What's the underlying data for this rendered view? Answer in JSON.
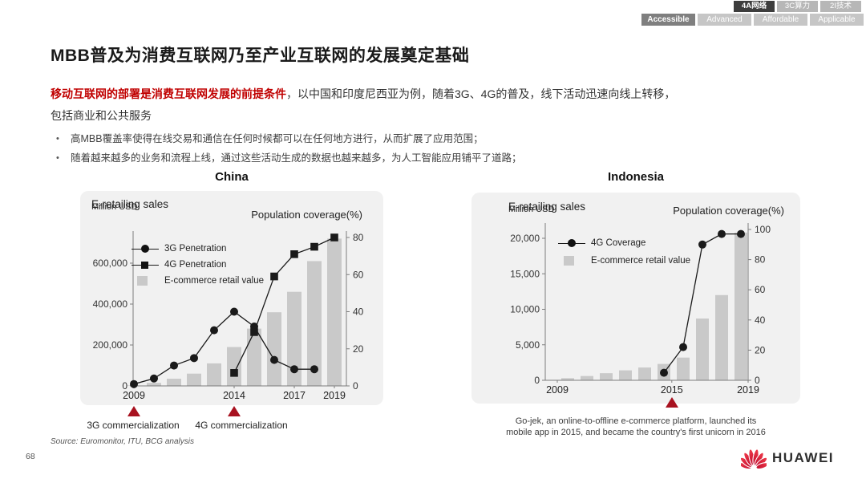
{
  "header": {
    "tabs_row1": [
      {
        "label": "4A网络",
        "active": true
      },
      {
        "label": "3C算力",
        "active": false
      },
      {
        "label": "2I技术",
        "active": false
      }
    ],
    "tabs_row2": [
      {
        "label": "Accessible",
        "active": true
      },
      {
        "label": "Advanced",
        "active": false
      },
      {
        "label": "Affordable",
        "active": false
      },
      {
        "label": "Applicable",
        "active": false
      }
    ],
    "title": "MBB普及为消费互联网乃至产业互联网的发展奠定基础"
  },
  "intro": {
    "highlight": "移动互联网的部署是消费互联网发展的前提条件",
    "rest": "，以中国和印度尼西亚为例，随着3G、4G的普及，线下活动迅速向线上转移，",
    "line2": "包括商业和公共服务"
  },
  "bullets": [
    "高MBB覆盖率使得在线交易和通信在任何时候都可以在任何地方进行，从而扩展了应用范围；",
    "随着越来越多的业务和流程上线，通过这些活动生成的数据也越来越多，为人工智能应用铺平了道路；"
  ],
  "chart_data": [
    {
      "type": "combo",
      "title": "China",
      "left_axis_title": "E-retailing sales",
      "left_axis_unit": "Million USD",
      "right_axis_title": "Population coverage(%)",
      "x": [
        2009,
        2010,
        2011,
        2012,
        2013,
        2014,
        2015,
        2016,
        2017,
        2018,
        2019
      ],
      "x_ticks": [
        {
          "year": 2009,
          "label": "2009"
        },
        {
          "year": 2014,
          "label": "2014"
        },
        {
          "year": 2017,
          "label": "2017"
        },
        {
          "year": 2019,
          "label": "2019"
        }
      ],
      "left_ticks": [
        {
          "value": 0,
          "label": "0"
        },
        {
          "value": 200000,
          "label": "200,000"
        },
        {
          "value": 400000,
          "label": "400,000"
        },
        {
          "value": 600000,
          "label": "600,000"
        }
      ],
      "right_ticks": [
        {
          "value": 0,
          "label": "0"
        },
        {
          "value": 20,
          "label": "20"
        },
        {
          "value": 40,
          "label": "40"
        },
        {
          "value": 60,
          "label": "60"
        },
        {
          "value": 80,
          "label": "80"
        }
      ],
      "left_axis_range": [
        0,
        740000
      ],
      "right_axis_range": [
        0,
        83
      ],
      "series": [
        {
          "name": "3G Penetration",
          "type": "line",
          "marker": "circle",
          "axis": "right",
          "color": "#1a1a1a",
          "values": [
            1,
            4,
            11,
            15,
            30,
            40,
            32,
            14,
            9,
            9,
            null
          ]
        },
        {
          "name": "4G Penetration",
          "type": "line",
          "marker": "square",
          "axis": "right",
          "color": "#1a1a1a",
          "values": [
            null,
            null,
            null,
            null,
            null,
            7,
            29,
            59,
            71,
            75,
            80
          ]
        },
        {
          "name": "E-commerce retail value",
          "type": "bar",
          "axis": "left",
          "color": "#c9c9c9",
          "values": [
            2000,
            15000,
            35000,
            60000,
            110000,
            190000,
            280000,
            360000,
            460000,
            610000,
            720000
          ]
        }
      ],
      "milestones": [
        {
          "year": 2009,
          "label": "3G commercialization"
        },
        {
          "year": 2014,
          "label": "4G commercialization"
        }
      ]
    },
    {
      "type": "combo",
      "title": "Indonesia",
      "left_axis_title": "E-retailing sales",
      "left_axis_unit": "Million USD",
      "right_axis_title": "Population coverage(%)",
      "x": [
        2009,
        2010,
        2011,
        2012,
        2013,
        2014,
        2015,
        2016,
        2017,
        2018,
        2019
      ],
      "x_ticks": [
        {
          "year": 2009,
          "label": "2009"
        },
        {
          "year": 2015,
          "label": "2015"
        },
        {
          "year": 2019,
          "label": "2019"
        }
      ],
      "left_ticks": [
        {
          "value": 0,
          "label": "0"
        },
        {
          "value": 5000,
          "label": "5,000"
        },
        {
          "value": 10000,
          "label": "10,000"
        },
        {
          "value": 15000,
          "label": "15,000"
        },
        {
          "value": 20000,
          "label": "20,000"
        }
      ],
      "right_ticks": [
        {
          "value": 0,
          "label": "0"
        },
        {
          "value": 20,
          "label": "20"
        },
        {
          "value": 40,
          "label": "40"
        },
        {
          "value": 60,
          "label": "60"
        },
        {
          "value": 80,
          "label": "80"
        },
        {
          "value": 100,
          "label": "100"
        }
      ],
      "left_axis_range": [
        0,
        22200
      ],
      "right_axis_range": [
        0,
        104
      ],
      "series": [
        {
          "name": "4G Coverage",
          "type": "line",
          "marker": "circle",
          "axis": "right",
          "color": "#1a1a1a",
          "values": [
            null,
            null,
            null,
            null,
            null,
            null,
            5,
            22,
            90,
            97,
            97
          ]
        },
        {
          "name": "E-commerce retail value",
          "type": "bar",
          "axis": "left",
          "color": "#c9c9c9",
          "values": [
            50,
            300,
            600,
            1000,
            1400,
            1800,
            2300,
            3200,
            8700,
            12000,
            20800
          ]
        }
      ],
      "milestones": [
        {
          "year": 2015,
          "label": ""
        }
      ],
      "caption_line1": "Go-jek, an online-to-offline e-commerce platform, launched its",
      "caption_line2": "mobile app in 2015, and became the country's first unicorn in 2016"
    }
  ],
  "footer": {
    "source": "Source: Euromonitor, ITU, BCG analysis",
    "page_number": "68",
    "logo_text": "HUAWEI"
  },
  "colors": {
    "accent_red": "#c00000",
    "milestone_red": "#a81220",
    "bar_gray": "#c9c9c9",
    "line_black": "#1a1a1a",
    "panel_bg": "#f1f1f1",
    "tab_active_dark": "#3d3d3d",
    "tab_inactive_light": "#b7b7b7",
    "tab_active_medium": "#7f7f7f",
    "tab_inactive_lighter": "#c6c6c6",
    "huawei_red": "#cf0a2c"
  }
}
